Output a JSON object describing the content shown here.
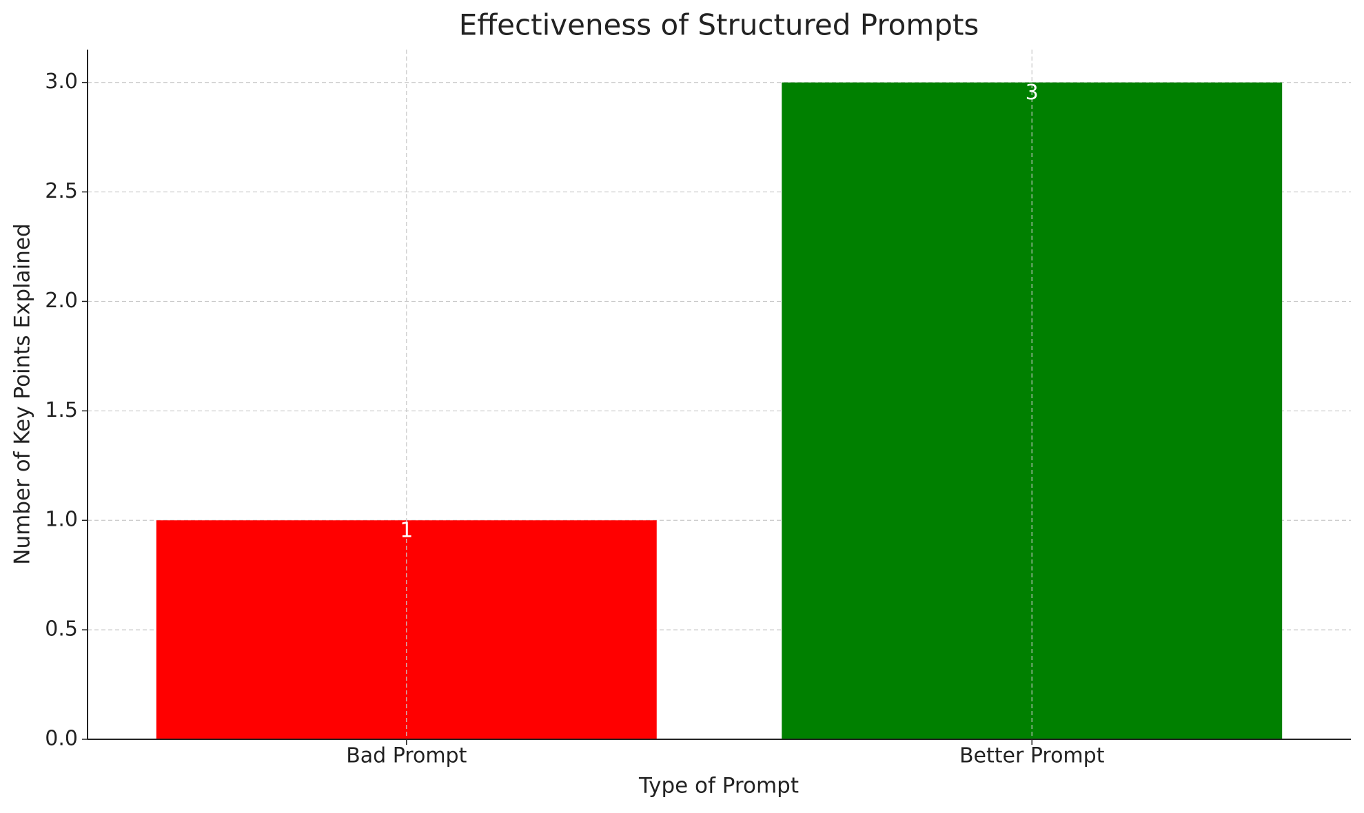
{
  "chart_data": {
    "type": "bar",
    "title": "Effectiveness of Structured Prompts",
    "x_label": "Type of Prompt",
    "y_label": "Number of Key Points Explained",
    "categories": [
      "Bad Prompt",
      "Better Prompt"
    ],
    "values": [
      1,
      3
    ],
    "colors": [
      "#ff0000",
      "#008000"
    ],
    "ylim": [
      0,
      3.15
    ],
    "yticks": [
      {
        "value": 0,
        "label": "0.0"
      },
      {
        "value": 0.5,
        "label": "0.5"
      },
      {
        "value": 1,
        "label": "1.0"
      },
      {
        "value": 1.5,
        "label": "1.5"
      },
      {
        "value": 2,
        "label": "2.0"
      },
      {
        "value": 2.5,
        "label": "2.5"
      },
      {
        "value": 3,
        "label": "3.0"
      }
    ],
    "grid": true
  }
}
